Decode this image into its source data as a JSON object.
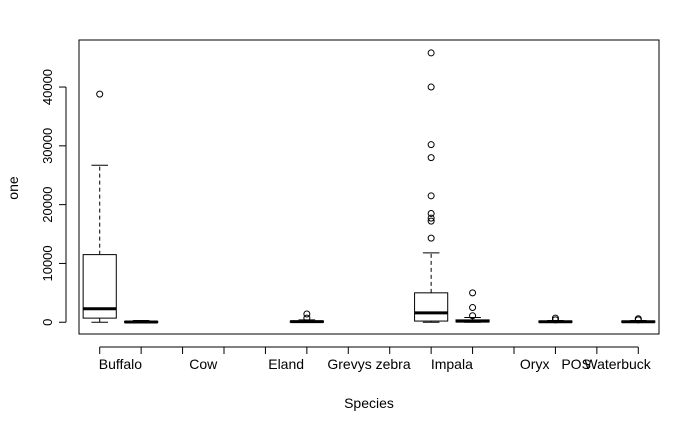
{
  "chart_data": {
    "type": "boxplot",
    "xlabel": "Species",
    "ylabel": "one",
    "ylim": [
      -2000,
      48000
    ],
    "yticks": [
      0,
      10000,
      20000,
      30000,
      40000
    ],
    "x_labels": [
      {
        "text": "Buffalo",
        "pos": 1.5
      },
      {
        "text": "Cow",
        "pos": 3.5
      },
      {
        "text": "Eland",
        "pos": 5.5
      },
      {
        "text": "Grevys zebra",
        "pos": 7.5
      },
      {
        "text": "Impala",
        "pos": 9.5
      },
      {
        "text": "Oryx",
        "pos": 11.5
      },
      {
        "text": "POS",
        "pos": 12.5
      },
      {
        "text": "Waterbuck",
        "pos": 13.5
      }
    ],
    "xlim": [
      0.5,
      14.5
    ],
    "xticks": [
      1,
      2,
      3,
      4,
      5,
      6,
      7,
      8,
      9,
      10,
      11,
      12,
      13,
      14
    ],
    "boxes": [
      {
        "pos": 1,
        "min": 0,
        "q1": 700,
        "median": 2300,
        "q3": 11500,
        "max": 26700,
        "outliers": [
          38800
        ]
      },
      {
        "pos": 2,
        "min": 0,
        "q1": 0,
        "median": 50,
        "q3": 150,
        "max": 300,
        "outliers": []
      },
      {
        "pos": 6,
        "min": 0,
        "q1": 0,
        "median": 100,
        "q3": 200,
        "max": 400,
        "outliers": [
          700,
          1400
        ]
      },
      {
        "pos": 9,
        "min": 0,
        "q1": 200,
        "median": 1600,
        "q3": 5000,
        "max": 11800,
        "outliers": [
          14300,
          17200,
          17700,
          18500,
          21500,
          28000,
          30200,
          40000,
          45800
        ]
      },
      {
        "pos": 10,
        "min": 0,
        "q1": 50,
        "median": 200,
        "q3": 400,
        "max": 800,
        "outliers": [
          1100,
          2500,
          5000
        ]
      },
      {
        "pos": 12,
        "min": 0,
        "q1": 0,
        "median": 80,
        "q3": 200,
        "max": 300,
        "outliers": [
          400,
          700
        ]
      },
      {
        "pos": 14,
        "min": 0,
        "q1": 0,
        "median": 80,
        "q3": 200,
        "max": 300,
        "outliers": [
          400,
          600
        ]
      }
    ]
  }
}
